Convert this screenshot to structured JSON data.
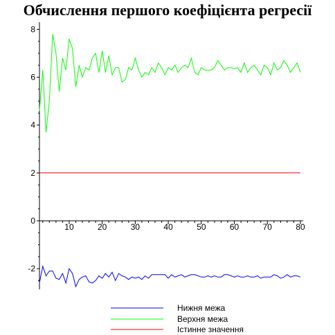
{
  "chart_data": {
    "type": "line",
    "title": "Обчислення першого коефіцієнта регресії",
    "xlabel": "",
    "ylabel": "",
    "xlim": [
      1,
      80
    ],
    "ylim": [
      -3.5,
      8.3
    ],
    "xticks": [
      10,
      20,
      30,
      40,
      50,
      60,
      70,
      80
    ],
    "yticks": [
      -2,
      0,
      2,
      4,
      6,
      8
    ],
    "grid": false,
    "legend_position": "bottom",
    "series": [
      {
        "name": "Нижня межа",
        "color": "#0000ff",
        "x": [
          1,
          2,
          3,
          4,
          5,
          6,
          7,
          8,
          9,
          10,
          11,
          12,
          13,
          14,
          15,
          16,
          17,
          18,
          19,
          20,
          21,
          22,
          23,
          24,
          25,
          26,
          27,
          28,
          29,
          30,
          31,
          32,
          33,
          34,
          35,
          36,
          37,
          38,
          39,
          40,
          41,
          42,
          43,
          44,
          45,
          46,
          47,
          48,
          49,
          50,
          51,
          52,
          53,
          54,
          55,
          56,
          57,
          58,
          59,
          60,
          61,
          62,
          63,
          64,
          65,
          66,
          67,
          68,
          69,
          70,
          71,
          72,
          73,
          74,
          75,
          76,
          77,
          78,
          79,
          80
        ],
        "values": [
          -2.6,
          -1.9,
          -2.3,
          -2.1,
          -2.1,
          -2.4,
          -2.45,
          -2.2,
          -2.6,
          -2.0,
          -2.2,
          -2.75,
          -2.45,
          -2.35,
          -2.3,
          -2.55,
          -2.6,
          -2.5,
          -2.3,
          -2.4,
          -2.2,
          -2.35,
          -2.15,
          -2.5,
          -2.2,
          -2.3,
          -2.35,
          -2.45,
          -2.35,
          -2.4,
          -2.35,
          -2.45,
          -2.3,
          -2.4,
          -2.25,
          -2.25,
          -2.25,
          -2.25,
          -2.25,
          -2.4,
          -2.25,
          -2.35,
          -2.3,
          -2.25,
          -2.35,
          -2.3,
          -2.25,
          -2.25,
          -2.3,
          -2.35,
          -2.35,
          -2.3,
          -2.35,
          -2.3,
          -2.35,
          -2.35,
          -2.25,
          -2.25,
          -2.3,
          -2.35,
          -2.3,
          -2.35,
          -2.35,
          -2.3,
          -2.35,
          -2.35,
          -2.3,
          -2.4,
          -2.35,
          -2.35,
          -2.35,
          -2.25,
          -2.3,
          -2.4,
          -2.35,
          -2.25,
          -2.35,
          -2.3,
          -2.3,
          -2.35
        ]
      },
      {
        "name": "Верхня межа",
        "color": "#00ff00",
        "x": [
          1,
          2,
          3,
          4,
          5,
          6,
          7,
          8,
          9,
          10,
          11,
          12,
          13,
          14,
          15,
          16,
          17,
          18,
          19,
          20,
          21,
          22,
          23,
          24,
          25,
          26,
          27,
          28,
          29,
          30,
          31,
          32,
          33,
          34,
          35,
          36,
          37,
          38,
          39,
          40,
          41,
          42,
          43,
          44,
          45,
          46,
          47,
          48,
          49,
          50,
          51,
          52,
          53,
          54,
          55,
          56,
          57,
          58,
          59,
          60,
          61,
          62,
          63,
          64,
          65,
          66,
          67,
          68,
          69,
          70,
          71,
          72,
          73,
          74,
          75,
          76,
          77,
          78,
          79,
          80
        ],
        "values": [
          4.6,
          6.3,
          3.7,
          5.0,
          7.8,
          7.0,
          5.4,
          6.8,
          6.3,
          7.6,
          7.2,
          5.6,
          6.5,
          6.0,
          6.4,
          6.3,
          6.8,
          7.0,
          6.2,
          7.1,
          6.2,
          6.9,
          6.1,
          6.4,
          6.4,
          5.8,
          5.9,
          6.4,
          6.3,
          6.8,
          6.3,
          6.0,
          6.2,
          6.1,
          6.4,
          6.2,
          6.6,
          6.4,
          6.1,
          6.4,
          6.3,
          6.5,
          6.2,
          6.4,
          6.5,
          6.4,
          6.8,
          6.2,
          6.1,
          6.4,
          6.3,
          6.3,
          6.3,
          6.4,
          6.7,
          6.5,
          6.3,
          6.4,
          6.4,
          6.35,
          6.4,
          6.2,
          6.6,
          6.2,
          6.4,
          6.5,
          6.3,
          6.1,
          6.5,
          6.4,
          6.1,
          6.6,
          6.3,
          6.4,
          6.7,
          6.5,
          6.2,
          6.4,
          6.6,
          6.2
        ]
      },
      {
        "name": "Істинне значення",
        "color": "#ff0000",
        "x": [
          1,
          80
        ],
        "values": [
          2,
          2
        ]
      }
    ]
  }
}
